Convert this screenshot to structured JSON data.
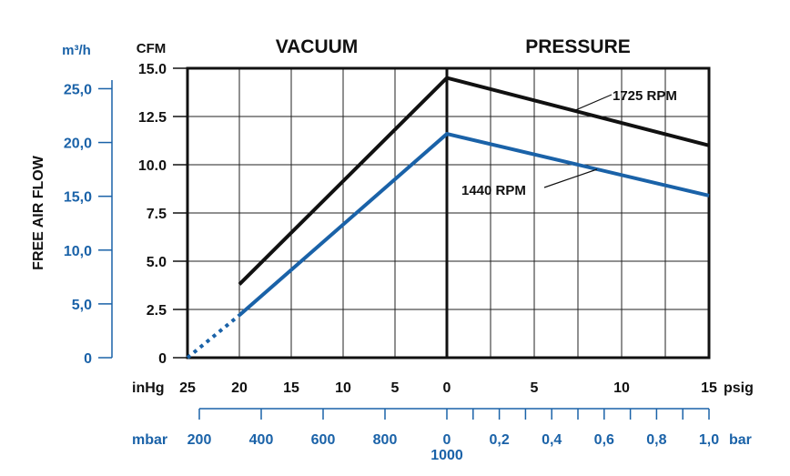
{
  "chart_data": {
    "type": "line",
    "title_left": "VACUUM",
    "title_right": "PRESSURE",
    "ylabel_side": "FREE AIR FLOW",
    "y_left_unit": "CFM",
    "y_left_ticks": [
      "0",
      "2.5",
      "5.0",
      "7.5",
      "10.0",
      "12.5",
      "15.0"
    ],
    "y_left_range": [
      0,
      15
    ],
    "y_outer_unit": "m³/h",
    "y_outer_ticks": [
      "0",
      "5,0",
      "10,0",
      "15,0",
      "20,0",
      "25,0"
    ],
    "x_top_left_unit": "inHg",
    "x_top_right_unit": "psig",
    "x_vacuum_ticks": [
      "25",
      "20",
      "15",
      "10",
      "5",
      "0"
    ],
    "x_vacuum_range": [
      25,
      0
    ],
    "x_pressure_ticks": [
      "5",
      "10",
      "15"
    ],
    "x_pressure_range": [
      0,
      15
    ],
    "x_bottom_left_unit": "mbar",
    "x_bottom_right_unit": "bar",
    "x_mbar_ticks": [
      "200",
      "400",
      "600",
      "800"
    ],
    "x_zero_label": "0",
    "x_zero_sub_label": "1000",
    "x_bar_ticks": [
      "0,2",
      "0,4",
      "0,6",
      "0,8",
      "1,0"
    ],
    "series": [
      {
        "name": "1725 RPM",
        "color": "#111111",
        "vacuum": [
          {
            "inHg": 20,
            "cfm": 3.8
          },
          {
            "inHg": 0,
            "cfm": 14.5
          }
        ],
        "pressure": [
          {
            "psig": 0,
            "cfm": 14.5
          },
          {
            "psig": 15,
            "cfm": 11.0
          }
        ]
      },
      {
        "name": "1440 RPM",
        "color": "#1a62a8",
        "vacuum_dotted": [
          {
            "inHg": 25,
            "cfm": 0
          },
          {
            "inHg": 20,
            "cfm": 2.2
          }
        ],
        "vacuum": [
          {
            "inHg": 20,
            "cfm": 2.2
          },
          {
            "inHg": 0,
            "cfm": 11.6
          }
        ],
        "pressure": [
          {
            "psig": 0,
            "cfm": 11.6
          },
          {
            "psig": 15,
            "cfm": 8.4
          }
        ]
      }
    ]
  },
  "colors": {
    "text": "#111111",
    "accent": "#1a62a8"
  }
}
